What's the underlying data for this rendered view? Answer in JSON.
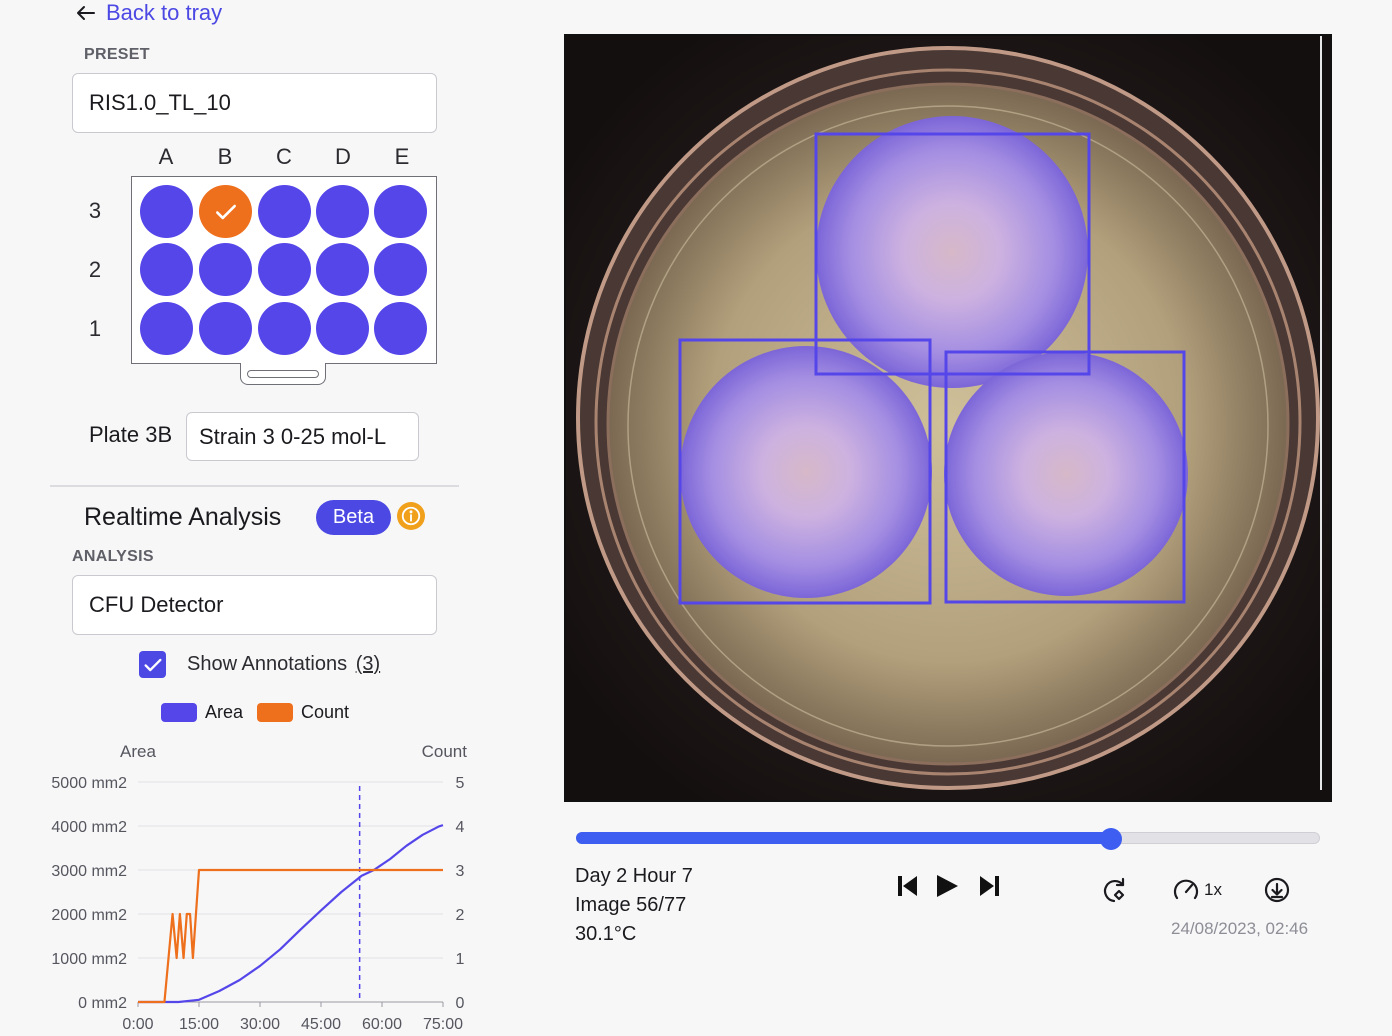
{
  "nav": {
    "back_label": "Back to tray"
  },
  "preset": {
    "label": "PRESET",
    "value": "RIS1.0_TL_10"
  },
  "plate_grid": {
    "columns": [
      "A",
      "B",
      "C",
      "D",
      "E"
    ],
    "rows": [
      "3",
      "2",
      "1"
    ],
    "selected": {
      "row": "3",
      "column": "B"
    },
    "well_color": "#5546ea",
    "selected_color": "#ee6f1c"
  },
  "plate": {
    "label": "Plate 3B",
    "name_value": "Strain 3 0-25 mol-L"
  },
  "analysis": {
    "title": "Realtime Analysis",
    "badge": "Beta",
    "label": "ANALYSIS",
    "value": "CFU Detector",
    "show_annotations_label": "Show Annotations",
    "annotations_count": "(3)",
    "show_annotations_checked": true
  },
  "chart_data": {
    "type": "line",
    "series": [
      {
        "name": "Area",
        "color": "#5546ea",
        "axis": "left",
        "x": [
          0,
          5,
          10,
          15,
          20,
          25,
          30,
          35,
          40,
          45,
          50,
          55,
          58,
          62,
          66,
          70,
          74,
          75
        ],
        "values": [
          0,
          0,
          0,
          50,
          250,
          500,
          820,
          1200,
          1650,
          2080,
          2500,
          2870,
          3000,
          3250,
          3550,
          3800,
          3990,
          4020
        ]
      },
      {
        "name": "Count",
        "color": "#ee6f1c",
        "axis": "right",
        "x": [
          0,
          6.5,
          8.5,
          9.5,
          10.3,
          11.2,
          12,
          12.8,
          13.5,
          15,
          75
        ],
        "values": [
          0,
          0,
          2,
          1,
          2,
          1,
          2,
          2,
          1,
          3,
          3
        ]
      }
    ],
    "xlabel": "",
    "ylabel_left": "Area",
    "ylabel_right": "Count",
    "x_ticks": [
      "0:00",
      "15:00",
      "30:00",
      "45:00",
      "60:00",
      "75:00"
    ],
    "x_tick_values": [
      0,
      15,
      30,
      45,
      60,
      75
    ],
    "xlim": [
      0,
      75
    ],
    "y_left_ticks": [
      "0 mm2",
      "1000 mm2",
      "2000 mm2",
      "3000 mm2",
      "4000 mm2",
      "5000 mm2"
    ],
    "y_left_tick_values": [
      0,
      1000,
      2000,
      3000,
      4000,
      5000
    ],
    "ylim_left": [
      0,
      5000
    ],
    "y_right_ticks": [
      "0",
      "1",
      "2",
      "3",
      "4",
      "5"
    ],
    "y_right_tick_values": [
      0,
      1,
      2,
      3,
      4,
      5
    ],
    "ylim_right": [
      0,
      5
    ],
    "current_marker_x": 54.5,
    "grid": true,
    "legend_position": "top"
  },
  "viewer": {
    "annotation_color": "#5546ea",
    "annotations_count": 3
  },
  "timeline": {
    "day_hour": "Day 2 Hour 7",
    "image_index": "Image 56/77",
    "temperature": "30.1°C",
    "progress": 0.719,
    "speed_label": "1x",
    "timestamp": "24/08/2023, 02:46",
    "accent_color": "#3d5ef0"
  },
  "icons": {
    "back": "arrow-left-icon",
    "skip_back": "skip-back-icon",
    "play": "play-icon",
    "skip_forward": "skip-forward-icon",
    "rotate": "rotate-icon",
    "speed": "speedometer-icon",
    "download": "download-icon",
    "info": "info-icon",
    "check": "check-icon"
  }
}
